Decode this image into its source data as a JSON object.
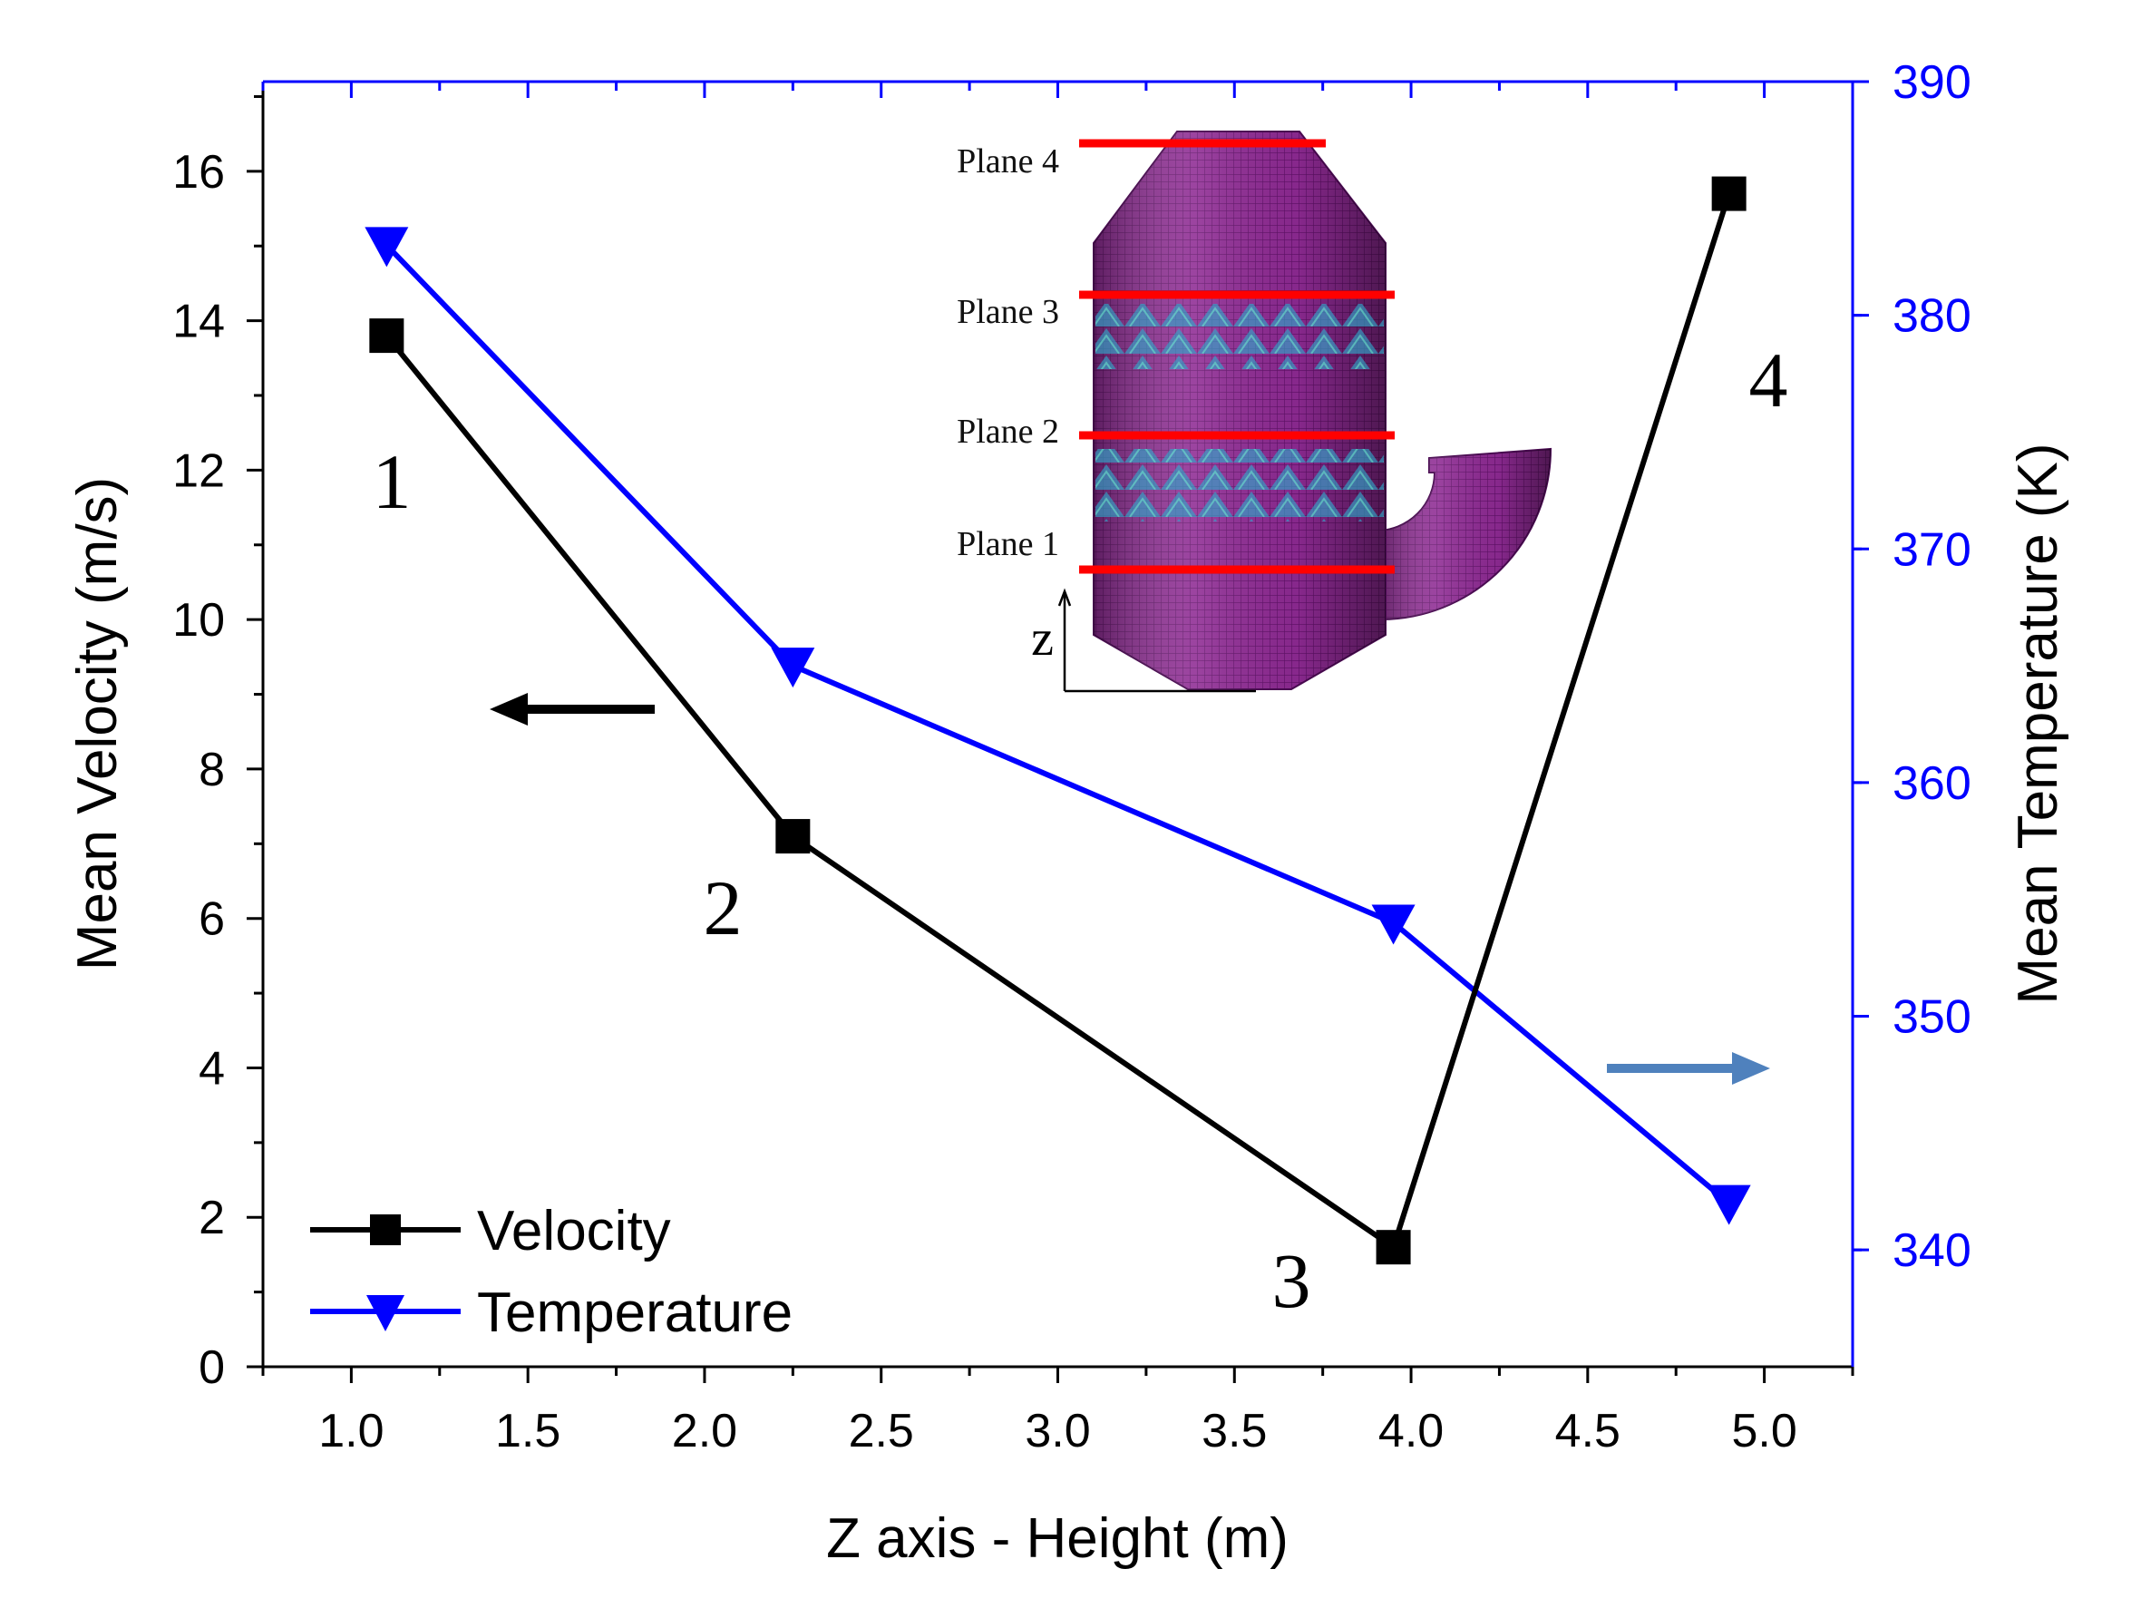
{
  "chart_data": {
    "type": "line",
    "x_axis": {
      "label": "Z axis - Height (m)",
      "range": [
        0.75,
        5.25
      ],
      "ticks": [
        1.0,
        1.5,
        2.0,
        2.5,
        3.0,
        3.5,
        4.0,
        4.5,
        5.0
      ],
      "tick_labels": [
        "1.0",
        "1.5",
        "2.0",
        "2.5",
        "3.0",
        "3.5",
        "4.0",
        "4.5",
        "5.0"
      ]
    },
    "y_axis_left": {
      "label": "Mean Velocity (m/s)",
      "range": [
        0,
        17.2
      ],
      "ticks": [
        0,
        2,
        4,
        6,
        8,
        10,
        12,
        14,
        16
      ],
      "tick_labels": [
        "0",
        "2",
        "4",
        "6",
        "8",
        "10",
        "12",
        "14",
        "16"
      ],
      "color": "#000000"
    },
    "y_axis_right": {
      "label": "Mean Temperature (K)",
      "range": [
        335,
        390
      ],
      "ticks": [
        340,
        350,
        360,
        370,
        380,
        390
      ],
      "tick_labels": [
        "340",
        "350",
        "360",
        "370",
        "380",
        "390"
      ],
      "color": "#0000ff"
    },
    "series": [
      {
        "name": "Velocity",
        "axis": "left",
        "marker": "square",
        "color": "#000000",
        "x": [
          1.1,
          2.25,
          3.95,
          4.9
        ],
        "values": [
          13.8,
          7.1,
          1.6,
          15.7
        ]
      },
      {
        "name": "Temperature",
        "axis": "right",
        "marker": "triangle-down",
        "color": "#0000ff",
        "x": [
          1.1,
          2.25,
          3.95,
          4.9
        ],
        "values": [
          383,
          365,
          354,
          342
        ]
      }
    ],
    "point_labels": [
      "1",
      "2",
      "3",
      "4"
    ],
    "legend": {
      "position": "bottom-left",
      "entries": [
        "Velocity",
        "Temperature"
      ]
    },
    "arrows": [
      {
        "direction": "left",
        "meaning": "velocity-left-axis",
        "color": "#000000"
      },
      {
        "direction": "right",
        "meaning": "temperature-right-axis",
        "color": "#4f81bd"
      }
    ],
    "inset": {
      "plane_labels": [
        "Plane 4",
        "Plane 3",
        "Plane 2",
        "Plane 1"
      ],
      "axis_label": "z",
      "vessel_color": "#7a1a82",
      "plane_color": "#ff0000"
    }
  }
}
